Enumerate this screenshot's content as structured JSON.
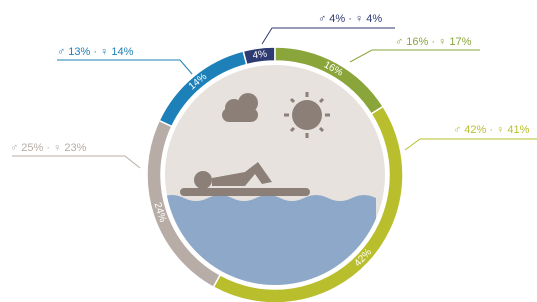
{
  "chart_data": {
    "type": "donut",
    "values": [
      4,
      16,
      42,
      24,
      14
    ],
    "value_labels": [
      "4%",
      "16%",
      "42%",
      "24%",
      "14%"
    ],
    "callouts": [
      "♂ 4% · ♀ 4%",
      "♂ 16% · ♀ 17%",
      "♂ 42% · ♀ 41%",
      "♂ 25% · ♀ 23%",
      "♂ 13% · ♀ 14%"
    ],
    "colors": [
      "#2e3a72",
      "#8aa63b",
      "#b9bf2c",
      "#b7aca6",
      "#1d80b8"
    ]
  }
}
